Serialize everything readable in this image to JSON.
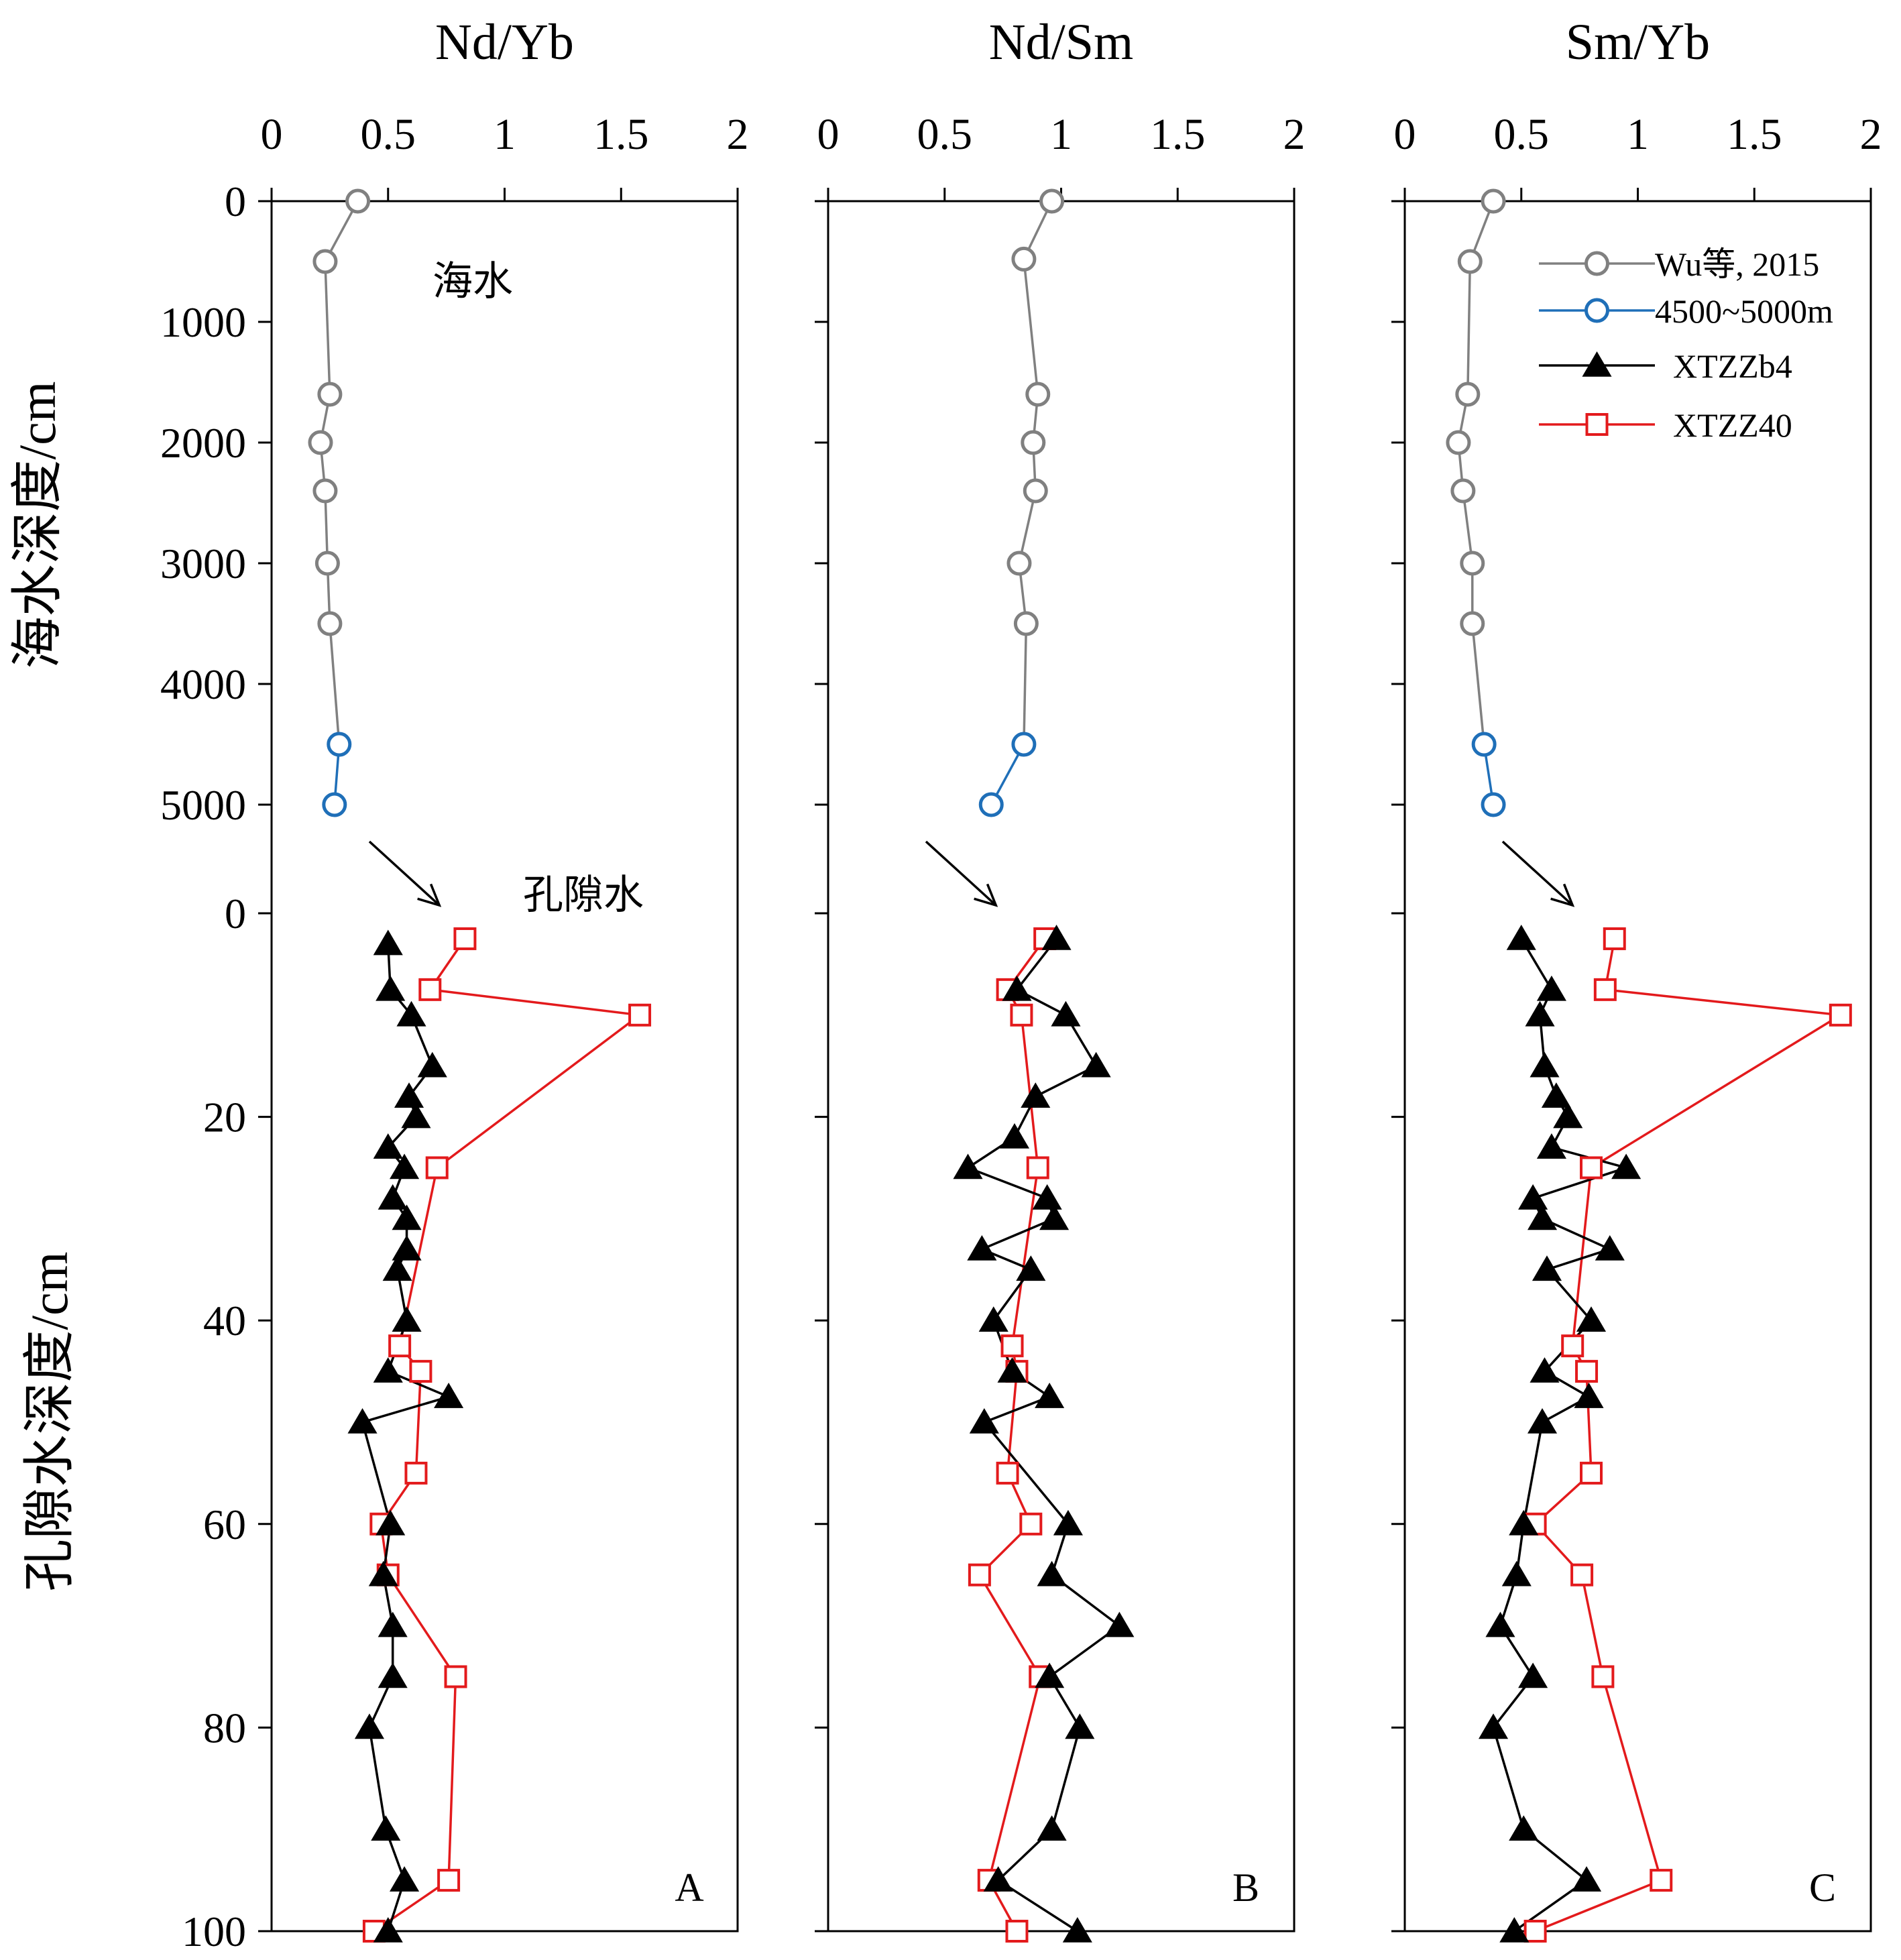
{
  "figure": {
    "y_label_seawater": "海水深度/cm",
    "y_label_porewater": "孔隙水深度/cm",
    "seawater_annotation": "海水",
    "porewater_annotation": "孔隙水",
    "seawater_ticks": [
      "0",
      "1000",
      "2000",
      "3000",
      "4000",
      "5000"
    ],
    "porewater_ticks": [
      "0",
      "20",
      "40",
      "60",
      "80",
      "100"
    ],
    "legend": [
      {
        "label": "Wu等, 2015",
        "marker": "circle",
        "color": "#808080"
      },
      {
        "label": "4500~5000m",
        "marker": "circle",
        "color": "#1f6fb8"
      },
      {
        "label": "XTZZb4",
        "marker": "triangle",
        "color": "#000000"
      },
      {
        "label": "XTZZ40",
        "marker": "square",
        "color": "#e31a1c"
      }
    ]
  },
  "chart_data": [
    {
      "type": "line",
      "panel": "A",
      "title": "Nd/Yb",
      "x_ticks": [
        "0",
        "0.5",
        "1",
        "1.5",
        "2"
      ],
      "xlim": [
        0,
        2
      ],
      "seawater_ylim": [
        0,
        5000
      ],
      "porewater_ylim": [
        0,
        100
      ],
      "seawater_gray": {
        "name": "Wu等, 2015",
        "x": [
          0.37,
          0.23,
          0.25,
          0.21,
          0.23,
          0.24,
          0.25
        ],
        "depth": [
          0,
          500,
          1600,
          2000,
          2400,
          3000,
          3500
        ]
      },
      "seawater_blue": {
        "name": "4500~5000m",
        "x": [
          0.29,
          0.27
        ],
        "depth": [
          4500,
          5000
        ]
      },
      "XTZZb4": {
        "name": "XTZZb4",
        "x": [
          0.5,
          0.51,
          0.6,
          0.69,
          0.59,
          0.62,
          0.5,
          0.57,
          0.52,
          0.58,
          0.58,
          0.54,
          0.58,
          0.5,
          0.76,
          0.39,
          0.51,
          0.48,
          0.52,
          0.52,
          0.42,
          0.49,
          0.57,
          0.5
        ],
        "depth": [
          3,
          7.5,
          10,
          15,
          18,
          20,
          23,
          25,
          28,
          30,
          33,
          35,
          40,
          45,
          47.5,
          50,
          60,
          65,
          70,
          75,
          80,
          90,
          95,
          100
        ]
      },
      "XTZZ40": {
        "name": "XTZZ40",
        "x": [
          0.83,
          0.68,
          1.58,
          0.71,
          0.55,
          0.64,
          0.62,
          0.47,
          0.5,
          0.79,
          0.76,
          0.44
        ],
        "depth": [
          2.5,
          7.5,
          10,
          25,
          42.5,
          45,
          55,
          60,
          65,
          75,
          95,
          100
        ]
      }
    },
    {
      "type": "line",
      "panel": "B",
      "title": "Nd/Sm",
      "x_ticks": [
        "0",
        "0.5",
        "1",
        "1.5",
        "2"
      ],
      "xlim": [
        0,
        2
      ],
      "seawater_ylim": [
        0,
        5000
      ],
      "porewater_ylim": [
        0,
        100
      ],
      "seawater_gray": {
        "name": "Wu等, 2015",
        "x": [
          0.96,
          0.84,
          0.9,
          0.88,
          0.89,
          0.82,
          0.85
        ],
        "depth": [
          0,
          480,
          1600,
          2000,
          2400,
          3000,
          3500
        ]
      },
      "seawater_blue": {
        "name": "4500~5000m",
        "x": [
          0.84,
          0.7
        ],
        "depth": [
          4500,
          5000
        ]
      },
      "XTZZb4": {
        "name": "XTZZb4",
        "x": [
          0.98,
          0.81,
          1.02,
          1.15,
          0.89,
          0.8,
          0.6,
          0.94,
          0.97,
          0.66,
          0.87,
          0.71,
          0.79,
          0.95,
          0.67,
          1.03,
          0.96,
          1.25,
          0.95,
          1.08,
          0.96,
          0.73,
          1.07
        ],
        "depth": [
          2.5,
          7.5,
          10,
          15,
          18,
          22,
          25,
          28,
          30,
          33,
          35,
          40,
          45,
          47.5,
          50,
          60,
          65,
          70,
          75,
          80,
          90,
          95,
          100
        ]
      },
      "XTZZ40": {
        "name": "XTZZ40",
        "x": [
          0.93,
          0.77,
          0.83,
          0.9,
          0.79,
          0.81,
          0.77,
          0.87,
          0.65,
          0.91,
          0.69,
          0.81
        ],
        "depth": [
          2.5,
          7.5,
          10,
          25,
          42.5,
          45,
          55,
          60,
          65,
          75,
          95,
          100
        ]
      }
    },
    {
      "type": "line",
      "panel": "C",
      "title": "Sm/Yb",
      "x_ticks": [
        "0",
        "0.5",
        "1",
        "1.5",
        "2"
      ],
      "xlim": [
        0,
        2
      ],
      "seawater_ylim": [
        0,
        5000
      ],
      "porewater_ylim": [
        0,
        100
      ],
      "seawater_gray": {
        "name": "Wu等, 2015",
        "x": [
          0.38,
          0.28,
          0.27,
          0.23,
          0.25,
          0.29,
          0.29
        ],
        "depth": [
          0,
          500,
          1600,
          2000,
          2400,
          3000,
          3500
        ]
      },
      "seawater_blue": {
        "name": "4500~5000m",
        "x": [
          0.34,
          0.38
        ],
        "depth": [
          4500,
          5000
        ]
      },
      "XTZZb4": {
        "name": "XTZZb4",
        "x": [
          0.5,
          0.63,
          0.58,
          0.6,
          0.65,
          0.7,
          0.63,
          0.95,
          0.55,
          0.59,
          0.88,
          0.61,
          0.8,
          0.6,
          0.79,
          0.59,
          0.51,
          0.48,
          0.41,
          0.55,
          0.38,
          0.51,
          0.78,
          0.47
        ],
        "depth": [
          2.5,
          7.5,
          10,
          15,
          18,
          20,
          23,
          25,
          28,
          30,
          33,
          35,
          40,
          45,
          47.5,
          50,
          60,
          65,
          70,
          75,
          80,
          90,
          95,
          100
        ]
      },
      "XTZZ40": {
        "name": "XTZZ40",
        "x": [
          0.9,
          0.86,
          1.87,
          0.8,
          0.72,
          0.78,
          0.8,
          0.56,
          0.76,
          0.85,
          1.1,
          0.56
        ],
        "depth": [
          2.5,
          7.5,
          10,
          25,
          42.5,
          45,
          55,
          60,
          65,
          75,
          95,
          100
        ]
      }
    }
  ]
}
